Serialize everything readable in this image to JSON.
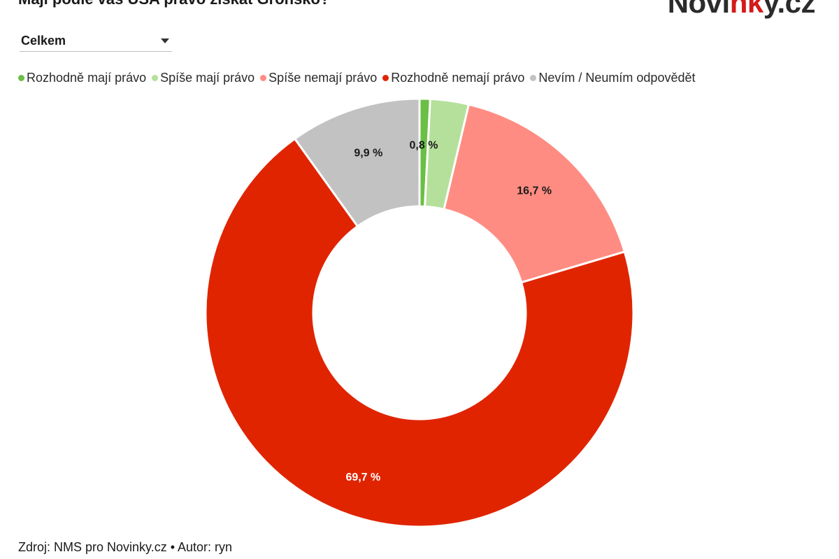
{
  "header": {
    "title": "Mají podle vás USA právo získat Grónsko?",
    "logo_main": "Novi",
    "logo_accent": "nk",
    "logo_end": "y.cz"
  },
  "filter": {
    "selected": "Celkem"
  },
  "footer": {
    "source": "Zdroj: NMS pro Novinky.cz • Autor: ryn"
  },
  "chart_data": {
    "type": "pie",
    "variant": "donut",
    "legend_position": "top-left",
    "categories": [
      "Rozhodně mají právo",
      "Spíše mají právo",
      "Spíše nemají právo",
      "Rozhodně nemají právo",
      "Nevím / Neumím odpovědět"
    ],
    "values": [
      0.8,
      2.9,
      16.7,
      69.7,
      9.9
    ],
    "labels": [
      "0,8 %",
      "",
      "16,7 %",
      "69,7 %",
      "9,9 %"
    ],
    "colors": [
      "#6abf45",
      "#b5e09b",
      "#ff8c82",
      "#e02400",
      "#c2c2c2"
    ],
    "label_colors": [
      "#1a1a1a",
      "#1a1a1a",
      "#1a1a1a",
      "#ffffff",
      "#1a1a1a"
    ]
  }
}
